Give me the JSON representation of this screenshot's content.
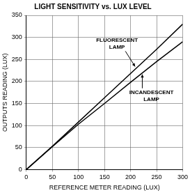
{
  "chart_data": {
    "type": "line",
    "title": "LIGHT SENSITIVITY vs. LUX LEVEL",
    "x_label": "REFERENCE METER READING (LUX)",
    "y_label": "OUTPUTS READING (LUX)",
    "x": [
      0,
      50,
      100,
      150,
      200,
      250,
      300
    ],
    "series": [
      {
        "name": "FLUORESCENT LAMP",
        "color": "#000000",
        "values": [
          0,
          53,
          108,
          163,
          218,
          273,
          330
        ]
      },
      {
        "name": "INCANDESCENT LAMP",
        "color": "#000000",
        "values": [
          0,
          52,
          103,
          150,
          198,
          245,
          290
        ]
      }
    ],
    "xlim": [
      0,
      300
    ],
    "xticks": [
      0,
      50,
      100,
      150,
      200,
      250,
      300
    ],
    "ylim": [
      0,
      350
    ],
    "yticks": [
      0,
      50,
      100,
      150,
      200,
      250,
      300,
      350
    ],
    "grid": true
  }
}
